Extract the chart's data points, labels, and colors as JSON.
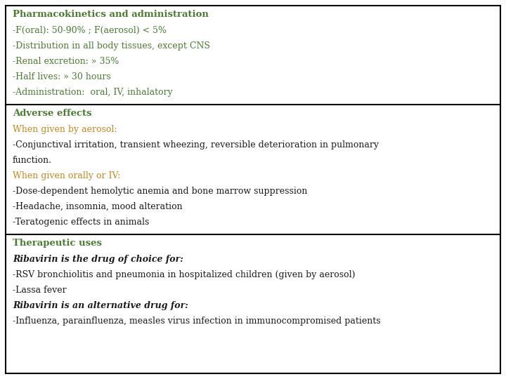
{
  "bg_color": "#ffffff",
  "border_color": "#000000",
  "green_color": "#4a7c2f",
  "orange_color": "#c8861a",
  "black_color": "#1a1a1a",
  "sections": [
    {
      "title": "Pharmacokinetics and administration",
      "title_color": "#4a7c2f",
      "lines": [
        {
          "text": "-F(oral): 50-90% ; F(aerosol) < 5%",
          "color": "#4a7c2f",
          "bold": false,
          "italic": false
        },
        {
          "text": "-Distribution in all body tissues, except CNS",
          "color": "#4a7c2f",
          "bold": false,
          "italic": false
        },
        {
          "text": "-Renal excretion: » 35%",
          "color": "#4a7c2f",
          "bold": false,
          "italic": false
        },
        {
          "text": "-Half lives: » 30 hours",
          "color": "#4a7c2f",
          "bold": false,
          "italic": false
        },
        {
          "text": "-Administration:  oral, IV, inhalatory",
          "color": "#4a7c2f",
          "bold": false,
          "italic": false
        }
      ]
    },
    {
      "title": "Adverse effects",
      "title_color": "#4a7c2f",
      "lines": [
        {
          "text": "When given by aerosol:",
          "color": "#c8861a",
          "bold": false,
          "italic": false
        },
        {
          "text": "-Conjunctival irritation, transient wheezing, reversible deterioration in pulmonary",
          "color": "#1a1a1a",
          "bold": false,
          "italic": false
        },
        {
          "text": "function.",
          "color": "#1a1a1a",
          "bold": false,
          "italic": false
        },
        {
          "text": "When given orally or IV:",
          "color": "#c8861a",
          "bold": false,
          "italic": false
        },
        {
          "text": "-Dose-dependent hemolytic anemia and bone marrow suppression",
          "color": "#1a1a1a",
          "bold": false,
          "italic": false
        },
        {
          "text": "-Headache, insomnia, mood alteration",
          "color": "#1a1a1a",
          "bold": false,
          "italic": false
        },
        {
          "text": "-Teratogenic effects in animals",
          "color": "#1a1a1a",
          "bold": false,
          "italic": false
        }
      ]
    },
    {
      "title": "Therapeutic uses",
      "title_color": "#4a7c2f",
      "lines": [
        {
          "text": "Ribavirin is the drug of choice for:",
          "color": "#1a1a1a",
          "bold": true,
          "italic": true
        },
        {
          "text": "-RSV bronchiolitis and pneumonia in hospitalized children (given by aerosol)",
          "color": "#1a1a1a",
          "bold": false,
          "italic": false
        },
        {
          "text": "-Lassa fever",
          "color": "#1a1a1a",
          "bold": false,
          "italic": false
        },
        {
          "text": "Ribavirin is an alternative drug for:",
          "color": "#1a1a1a",
          "bold": true,
          "italic": true
        },
        {
          "text": "-Influenza, parainfluenza, measles virus infection in immunocompromised patients",
          "color": "#1a1a1a",
          "bold": false,
          "italic": false
        }
      ]
    }
  ],
  "font_family": "serif",
  "font_size": 9.0,
  "title_font_size": 9.5,
  "fig_width": 7.2,
  "fig_height": 5.4,
  "dpi": 100
}
